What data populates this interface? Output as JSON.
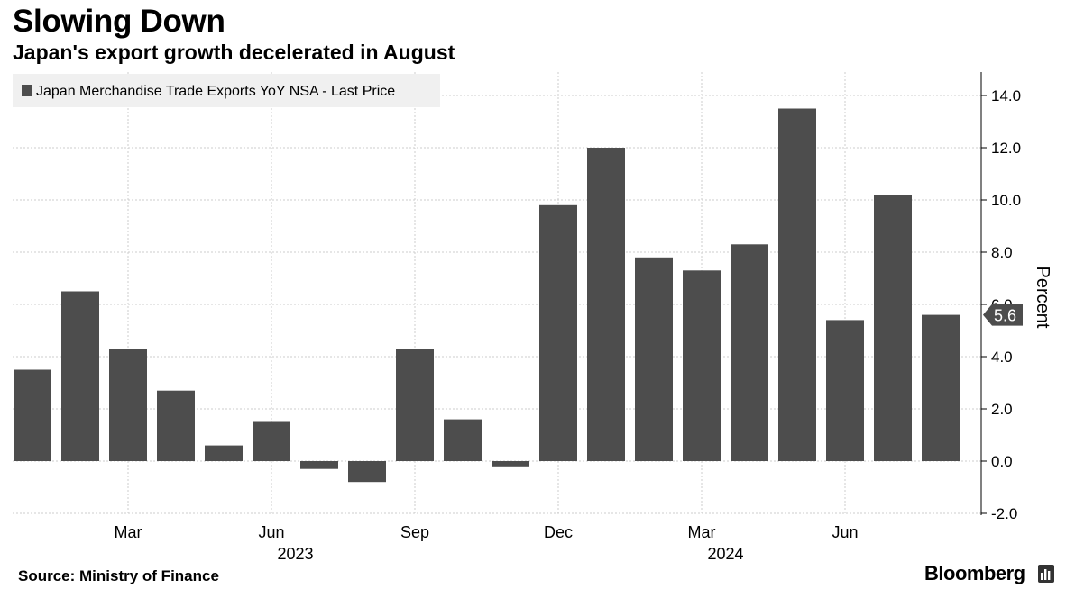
{
  "header": {
    "title": "Slowing Down",
    "subtitle": "Japan's export growth decelerated in August"
  },
  "footer": {
    "source": "Source: Ministry of Finance",
    "brand": "Bloomberg"
  },
  "colors": {
    "bar": "#4d4d4d",
    "grid": "#cccccc",
    "legend_bg": "#f0f0f0",
    "label_bg": "#4d4d4d"
  },
  "chart_data": {
    "type": "bar",
    "title": "Slowing Down",
    "subtitle": "Japan's export growth decelerated in August",
    "legend": [
      "Japan Merchandise Trade Exports YoY NSA - Last Price"
    ],
    "ylabel": "Percent",
    "ylim": [
      -2.0,
      15.0
    ],
    "yticks": [
      14.0,
      12.0,
      10.0,
      8.0,
      6.0,
      4.0,
      2.0,
      0.0,
      -2.0
    ],
    "ytick_labels": [
      "14.0",
      "12.0",
      "10.0",
      "8.0",
      "6.0",
      "4.0",
      "2.0",
      "0.0",
      "-2.0"
    ],
    "grid": true,
    "categories": [
      "Jan 2023",
      "Feb 2023",
      "Mar 2023",
      "Apr 2023",
      "May 2023",
      "Jun 2023",
      "Jul 2023",
      "Aug 2023",
      "Sep 2023",
      "Oct 2023",
      "Nov 2023",
      "Dec 2023",
      "Jan 2024",
      "Feb 2024",
      "Mar 2024",
      "Apr 2024",
      "May 2024",
      "Jun 2024",
      "Jul 2024",
      "Aug 2024"
    ],
    "values": [
      3.5,
      6.5,
      4.3,
      2.7,
      0.6,
      1.5,
      -0.3,
      -0.8,
      4.3,
      1.6,
      -0.2,
      9.8,
      12.0,
      7.8,
      7.3,
      8.3,
      13.5,
      5.4,
      10.2,
      5.6
    ],
    "x_ticks": [
      {
        "label": "Mar",
        "index": 2
      },
      {
        "label": "Jun",
        "index": 5
      },
      {
        "label": "Sep",
        "index": 8
      },
      {
        "label": "Dec",
        "index": 11
      },
      {
        "label": "Mar",
        "index": 14
      },
      {
        "label": "Jun",
        "index": 17
      }
    ],
    "year_labels": [
      {
        "label": "2023",
        "index": 5.5
      },
      {
        "label": "2024",
        "index": 14.5
      }
    ],
    "last_value_label": "5.6"
  }
}
